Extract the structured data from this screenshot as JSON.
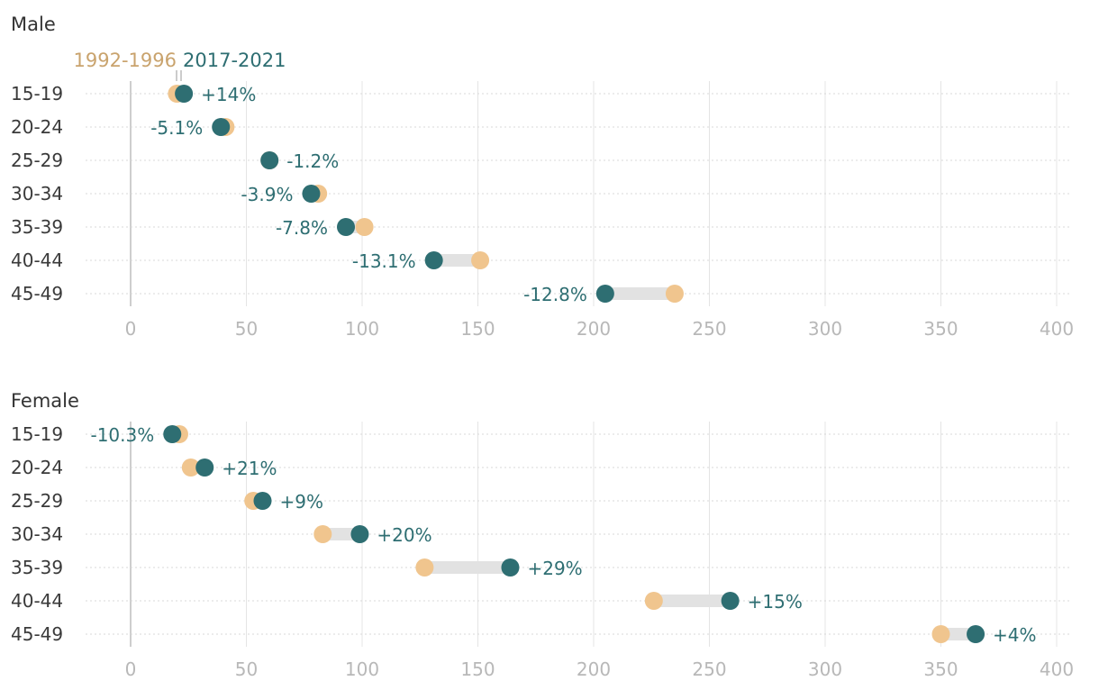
{
  "chart_data": [
    {
      "type": "dumbbell",
      "title": "Male",
      "categories": [
        "15-19",
        "20-24",
        "25-29",
        "30-34",
        "35-39",
        "40-44",
        "45-49"
      ],
      "series": [
        {
          "name": "1992-1996",
          "values": [
            20,
            41,
            60,
            81,
            101,
            151,
            235
          ]
        },
        {
          "name": "2017-2021",
          "values": [
            23,
            39,
            60,
            78,
            93,
            131,
            205
          ]
        }
      ],
      "labels": [
        "+14%",
        "-5.1%",
        "-1.2%",
        "-3.9%",
        "-7.8%",
        "-13.1%",
        "-12.8%"
      ],
      "xticks": [
        "0",
        "50",
        "100",
        "150",
        "200",
        "250",
        "300",
        "350",
        "400"
      ],
      "xlim": [
        0,
        400
      ],
      "grid": true
    },
    {
      "type": "dumbbell",
      "title": "Female",
      "categories": [
        "15-19",
        "20-24",
        "25-29",
        "30-34",
        "35-39",
        "40-44",
        "45-49"
      ],
      "series": [
        {
          "name": "1992-1996",
          "values": [
            21,
            26,
            53,
            83,
            127,
            226,
            350
          ]
        },
        {
          "name": "2017-2021",
          "values": [
            18,
            32,
            57,
            99,
            164,
            259,
            365
          ]
        }
      ],
      "labels": [
        "-10.3%",
        "+21%",
        "+9%",
        "+20%",
        "+29%",
        "+15%",
        "+4%"
      ],
      "xticks": [
        "0",
        "50",
        "100",
        "150",
        "200",
        "250",
        "300",
        "350",
        "400"
      ],
      "xlim": [
        0,
        400
      ],
      "grid": true
    }
  ],
  "legend": {
    "old_label": "1992-1996",
    "new_label": "2017-2021"
  },
  "colors": {
    "old": "#f0c58e",
    "new": "#2e6e72",
    "bar": "#e2e2e2",
    "old_text": "#c9a36d"
  }
}
